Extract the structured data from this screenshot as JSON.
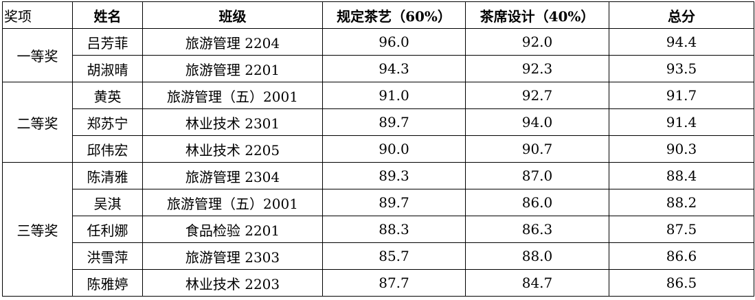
{
  "table": {
    "header": [
      "奖项",
      "姓名",
      "班级",
      "规定茶艺（60%）",
      "茶席设计（40%）",
      "总分"
    ],
    "groups": [
      {
        "award": "一等奖",
        "rows": [
          [
            "吕芳菲",
            "旅游管理 2204",
            "96.0",
            "92.0",
            "94.4"
          ],
          [
            "胡淑晴",
            "旅游管理 2201",
            "94.3",
            "92.3",
            "93.5"
          ]
        ]
      },
      {
        "award": "二等奖",
        "rows": [
          [
            "黄英",
            "旅游管理（五）2001",
            "91.0",
            "92.7",
            "91.7"
          ],
          [
            "郑苏宁",
            "林业技术 2301",
            "89.7",
            "94.0",
            "91.4"
          ],
          [
            "邱伟宏",
            "林业技术 2205",
            "90.0",
            "90.7",
            "90.3"
          ]
        ]
      },
      {
        "award": "三等奖",
        "rows": [
          [
            "陈清雅",
            "旅游管理 2304",
            "89.3",
            "87.0",
            "88.4"
          ],
          [
            "吴淇",
            "旅游管理（五）2001",
            "89.7",
            "86.0",
            "88.2"
          ],
          [
            "任利娜",
            "食品检验 2201",
            "88.3",
            "86.3",
            "87.5"
          ],
          [
            "洪雪萍",
            "旅游管理 2303",
            "85.7",
            "88.0",
            "86.6"
          ],
          [
            "陈雅婷",
            "林业技术 2203",
            "87.7",
            "84.7",
            "86.5"
          ]
        ]
      }
    ]
  }
}
